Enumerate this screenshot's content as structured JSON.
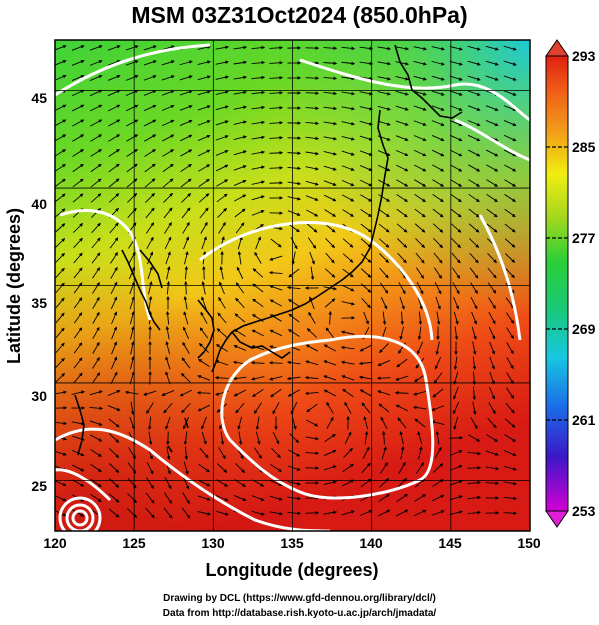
{
  "title": "MSM 03Z31Oct2024 (850.0hPa)",
  "map": {
    "x_axis": {
      "label": "Longitude (degrees)",
      "range": [
        120,
        150
      ],
      "ticks": [
        "120",
        "125",
        "130",
        "135",
        "140",
        "145",
        "150"
      ]
    },
    "y_axis": {
      "label": "Latitude (degrees)",
      "range": [
        22.4,
        47.6
      ],
      "ticks": [
        "25",
        "30",
        "35",
        "40",
        "45"
      ]
    },
    "grid": true,
    "field": "temperature shading with streamlines and white contours",
    "colorbar": {
      "range": [
        253,
        293
      ],
      "labels": [
        "293",
        "285",
        "277",
        "269",
        "261",
        "253"
      ],
      "colors": [
        "#d400d4",
        "#3a18c8",
        "#1a6ee8",
        "#18c8e0",
        "#18c87a",
        "#2ccf36",
        "#a8d81c",
        "#f0ee10",
        "#f2a018",
        "#f06018",
        "#e02010",
        "#d81818"
      ]
    }
  },
  "credits": {
    "line1": "Drawing by DCL (https://www.gfd-dennou.org/library/dcl/)",
    "line2": "Data from http://database.rish.kyoto-u.ac.jp/arch/jmadata/"
  }
}
